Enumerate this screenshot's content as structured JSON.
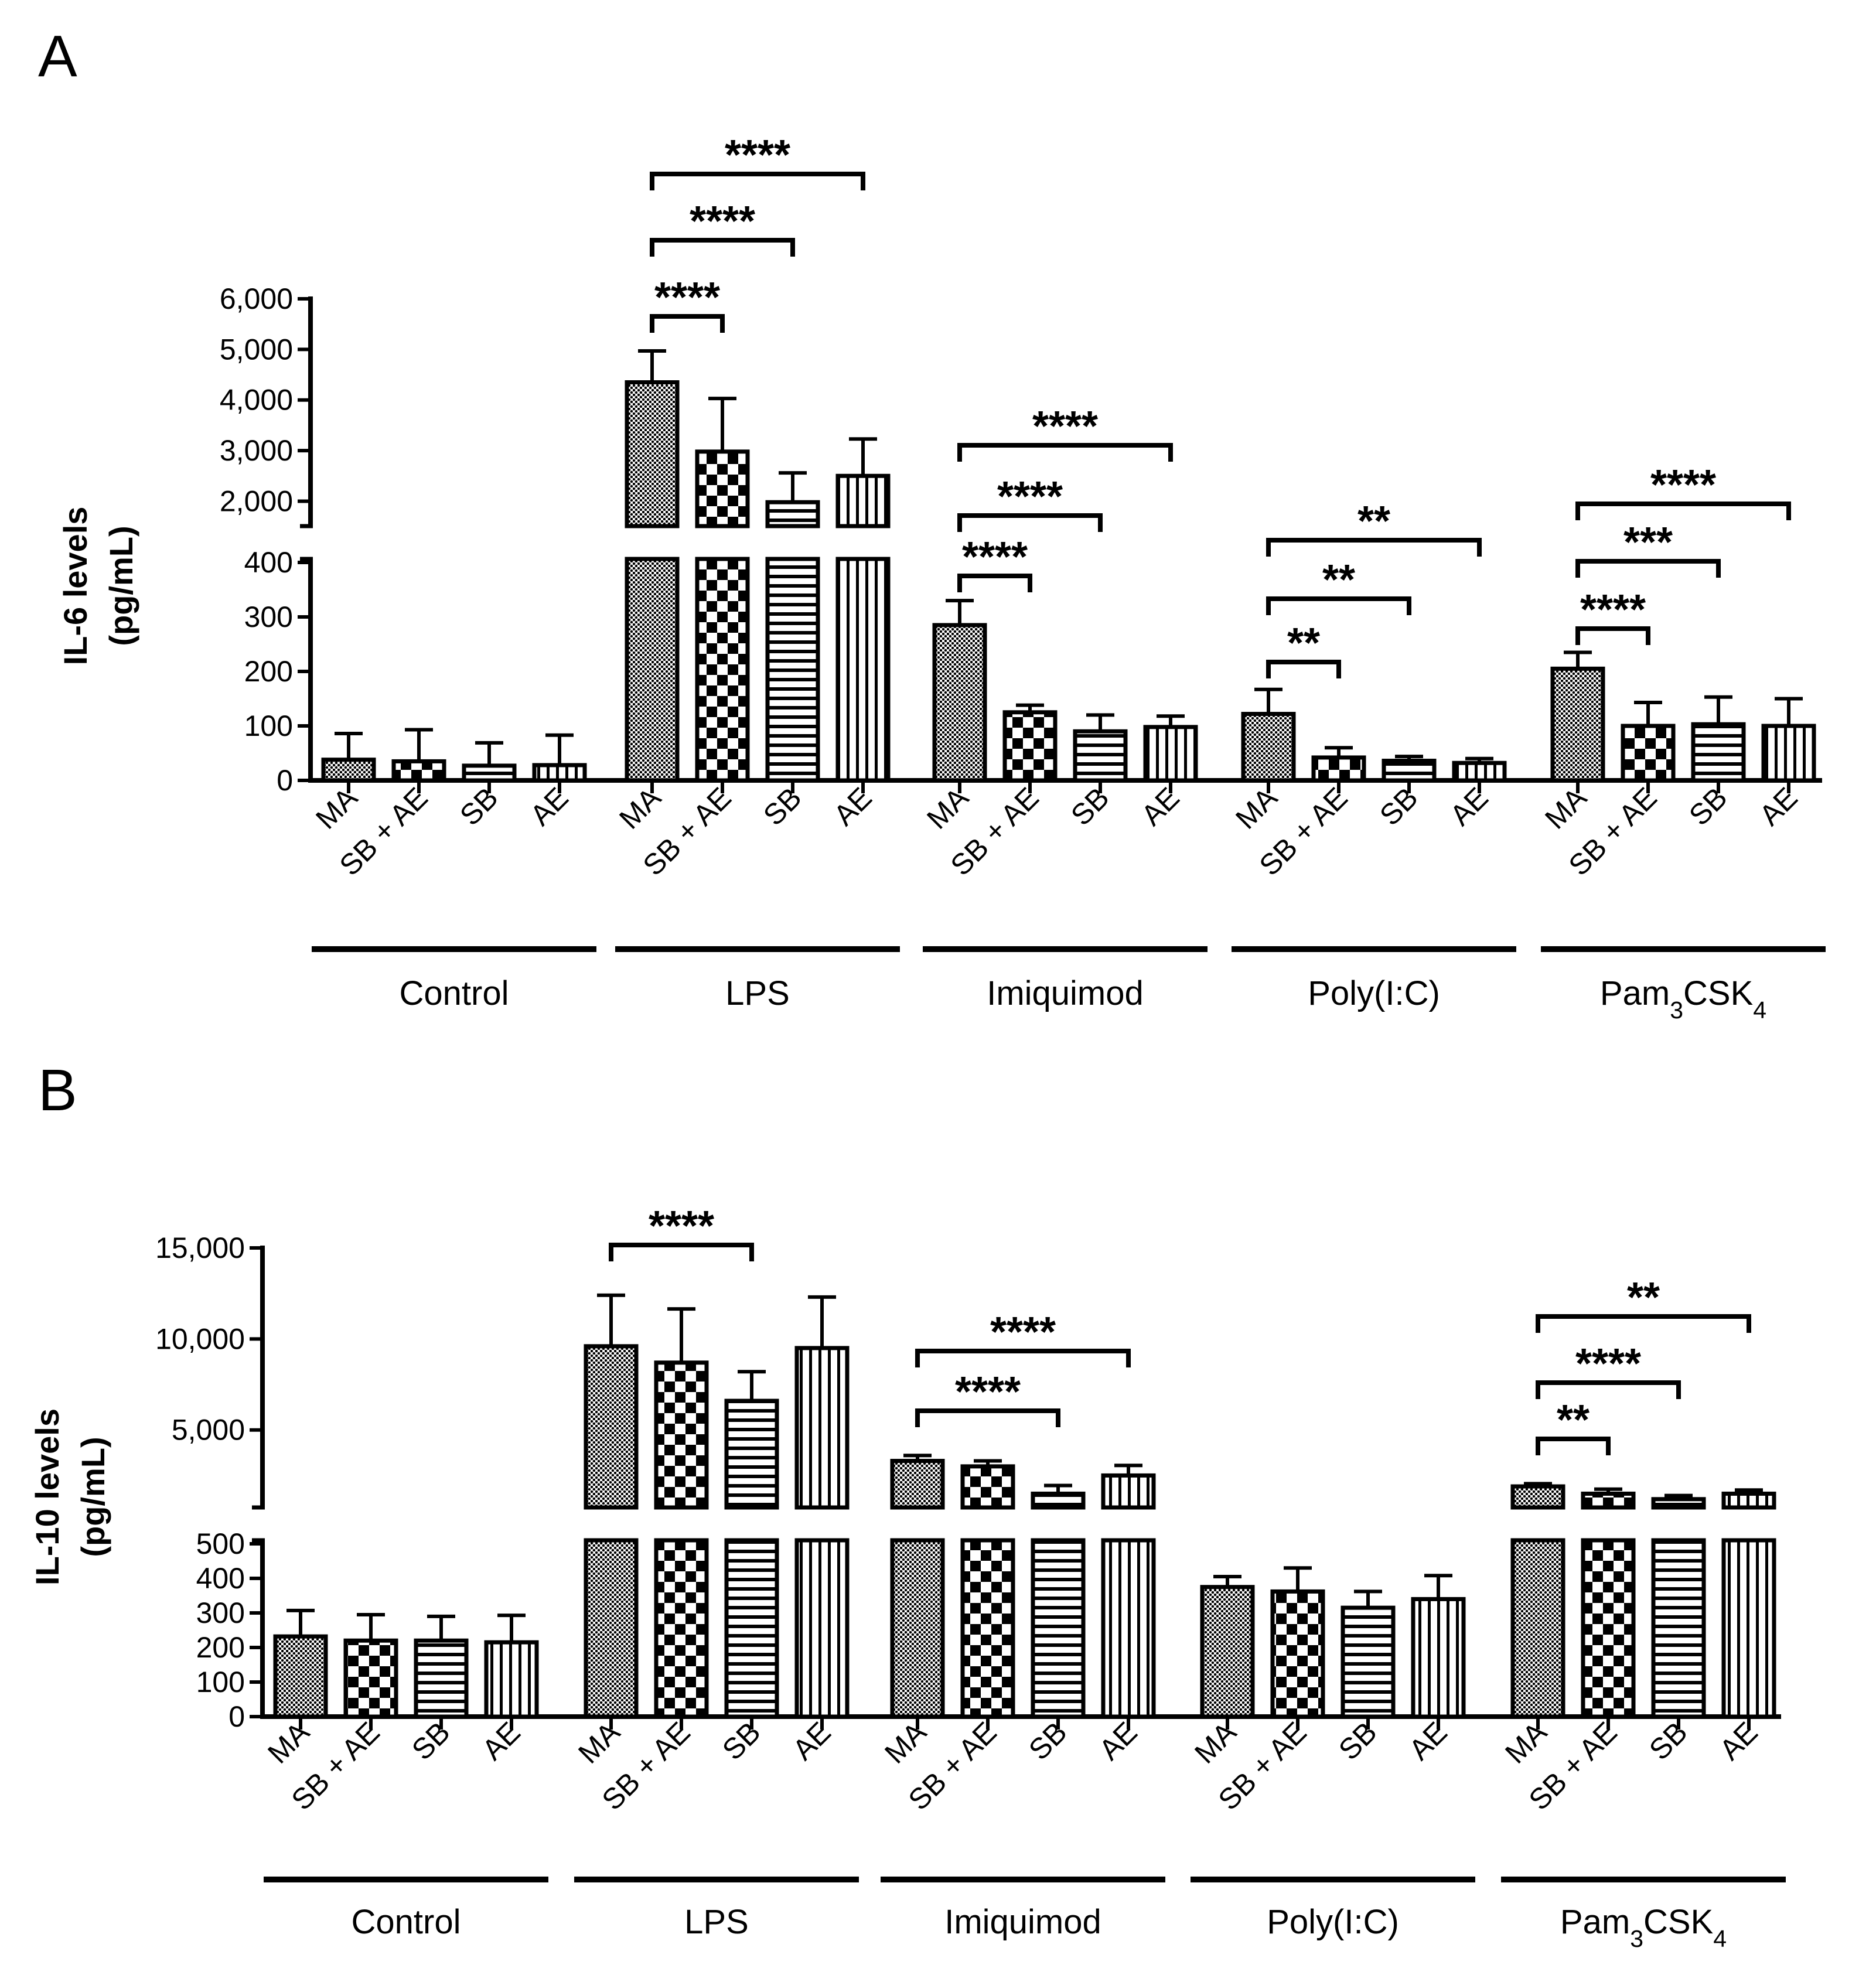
{
  "colors": {
    "ink": "#000000",
    "background": "#ffffff"
  },
  "chart_data": [
    {
      "type": "bar",
      "panel_label": "A",
      "ylabel_line1": "IL-6 levels",
      "ylabel_line2": "(pg/mL)",
      "bar_labels": [
        "MA",
        "SB + AE",
        "SB",
        "AE"
      ],
      "patterns": [
        "dots",
        "checker",
        "hstripes",
        "vstripes"
      ],
      "axis_break": true,
      "lower_ylim": [
        0,
        400
      ],
      "upper_ylim": [
        1600,
        6000
      ],
      "lower_ticks": [
        0,
        100,
        200,
        300,
        400
      ],
      "lower_tick_labels": [
        "0",
        "100",
        "200",
        "300",
        "400"
      ],
      "upper_ticks": [
        2000,
        3000,
        4000,
        5000,
        6000
      ],
      "upper_tick_labels": [
        "2,000",
        "3,000",
        "4,000",
        "5,000",
        "6,000"
      ],
      "groups": [
        {
          "name": "Control",
          "name_parts": [
            "Control"
          ],
          "values": [
            38,
            35,
            27,
            28
          ],
          "errors": [
            48,
            58,
            42,
            55
          ]
        },
        {
          "name": "LPS",
          "name_parts": [
            "LPS"
          ],
          "values": [
            4350,
            2980,
            1980,
            2500
          ],
          "errors": [
            620,
            1050,
            580,
            730
          ]
        },
        {
          "name": "Imiquimod",
          "name_parts": [
            "Imiquimod"
          ],
          "values": [
            285,
            125,
            90,
            98
          ],
          "errors": [
            45,
            13,
            30,
            20
          ]
        },
        {
          "name": "Poly(I:C)",
          "name_parts": [
            "Poly(I:C)"
          ],
          "values": [
            122,
            42,
            36,
            32
          ],
          "errors": [
            45,
            18,
            8,
            8
          ]
        },
        {
          "name": "Pam3CSK4",
          "name_parts": [
            "Pam",
            "3",
            "CSK",
            "4"
          ],
          "values": [
            205,
            100,
            103,
            100
          ],
          "errors": [
            30,
            43,
            50,
            50
          ]
        }
      ],
      "significance": [
        {
          "group": 1,
          "from": 0,
          "to": 1,
          "label": "****"
        },
        {
          "group": 1,
          "from": 0,
          "to": 2,
          "label": "****"
        },
        {
          "group": 1,
          "from": 0,
          "to": 3,
          "label": "****"
        },
        {
          "group": 2,
          "from": 0,
          "to": 1,
          "label": "****"
        },
        {
          "group": 2,
          "from": 0,
          "to": 2,
          "label": "****"
        },
        {
          "group": 2,
          "from": 0,
          "to": 3,
          "label": "****"
        },
        {
          "group": 3,
          "from": 0,
          "to": 1,
          "label": "**"
        },
        {
          "group": 3,
          "from": 0,
          "to": 2,
          "label": "**"
        },
        {
          "group": 3,
          "from": 0,
          "to": 3,
          "label": "**"
        },
        {
          "group": 4,
          "from": 0,
          "to": 1,
          "label": "****"
        },
        {
          "group": 4,
          "from": 0,
          "to": 2,
          "label": "***"
        },
        {
          "group": 4,
          "from": 0,
          "to": 3,
          "label": "****"
        }
      ]
    },
    {
      "type": "bar",
      "panel_label": "B",
      "ylabel_line1": "IL-10 levels",
      "ylabel_line2": "(pg/mL)",
      "bar_labels": [
        "MA",
        "SB + AE",
        "SB",
        "AE"
      ],
      "patterns": [
        "dots",
        "checker",
        "hstripes",
        "vstripes"
      ],
      "axis_break": true,
      "lower_ylim": [
        0,
        500
      ],
      "upper_ylim": [
        1000,
        15000
      ],
      "lower_ticks": [
        0,
        100,
        200,
        300,
        400,
        500
      ],
      "lower_tick_labels": [
        "0",
        "100",
        "200",
        "300",
        "400",
        "500"
      ],
      "upper_ticks": [
        5000,
        10000,
        15000
      ],
      "upper_tick_labels": [
        "5,000",
        "10,000",
        "15,000"
      ],
      "groups": [
        {
          "name": "Control",
          "name_parts": [
            "Control"
          ],
          "values": [
            232,
            220,
            220,
            215
          ],
          "errors": [
            75,
            75,
            70,
            78
          ]
        },
        {
          "name": "LPS",
          "name_parts": [
            "LPS"
          ],
          "values": [
            9600,
            8700,
            6600,
            9500
          ],
          "errors": [
            2800,
            2950,
            1600,
            2800
          ]
        },
        {
          "name": "Imiquimod",
          "name_parts": [
            "Imiquimod"
          ],
          "values": [
            3300,
            3000,
            1500,
            2500
          ],
          "errors": [
            300,
            300,
            450,
            550
          ]
        },
        {
          "name": "Poly(I:C)",
          "name_parts": [
            "Poly(I:C)"
          ],
          "values": [
            375,
            362,
            315,
            340
          ],
          "errors": [
            30,
            68,
            47,
            68
          ]
        },
        {
          "name": "Pam3CSK4",
          "name_parts": [
            "Pam",
            "3",
            "CSK",
            "4"
          ],
          "values": [
            1900,
            1500,
            1200,
            1500
          ],
          "errors": [
            150,
            250,
            200,
            200
          ]
        }
      ],
      "significance": [
        {
          "group": 1,
          "from": 0,
          "to": 2,
          "label": "****"
        },
        {
          "group": 2,
          "from": 0,
          "to": 2,
          "label": "****"
        },
        {
          "group": 2,
          "from": 0,
          "to": 3,
          "label": "****"
        },
        {
          "group": 4,
          "from": 0,
          "to": 1,
          "label": "**"
        },
        {
          "group": 4,
          "from": 0,
          "to": 2,
          "label": "****"
        },
        {
          "group": 4,
          "from": 0,
          "to": 3,
          "label": "**"
        }
      ]
    }
  ]
}
